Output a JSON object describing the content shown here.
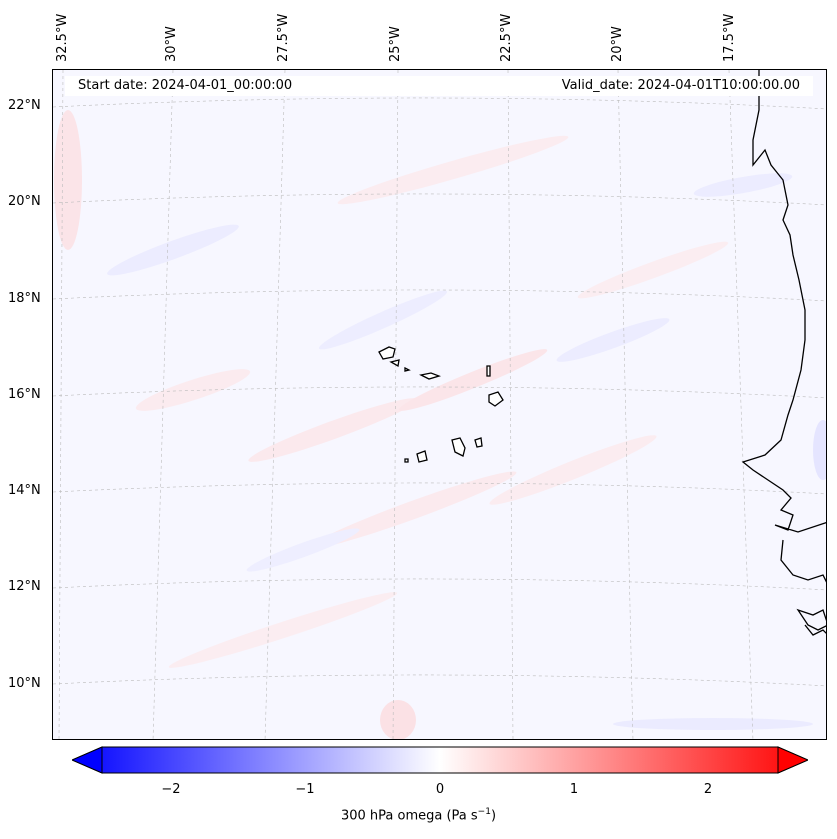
{
  "header": {
    "start_date": "Start date: 2024-04-01_00:00:00",
    "valid_date": "Valid_date: 2024-04-01T10:00:00.00"
  },
  "lon_labels": [
    "32.5°W",
    "30°W",
    "27.5°W",
    "25°W",
    "22.5°W",
    "20°W",
    "17.5°W"
  ],
  "lat_labels": [
    "22°N",
    "20°N",
    "18°N",
    "16°N",
    "14°N",
    "12°N",
    "10°N"
  ],
  "colorbar": {
    "ticks": [
      "−2",
      "−1",
      "0",
      "1",
      "2"
    ],
    "label_main": "300 hPa omega (Pa s",
    "label_sup": "−1",
    "label_end": ")",
    "colors": {
      "negative": "#0000ff",
      "zero": "#ffffff",
      "positive": "#ff0000"
    }
  }
}
